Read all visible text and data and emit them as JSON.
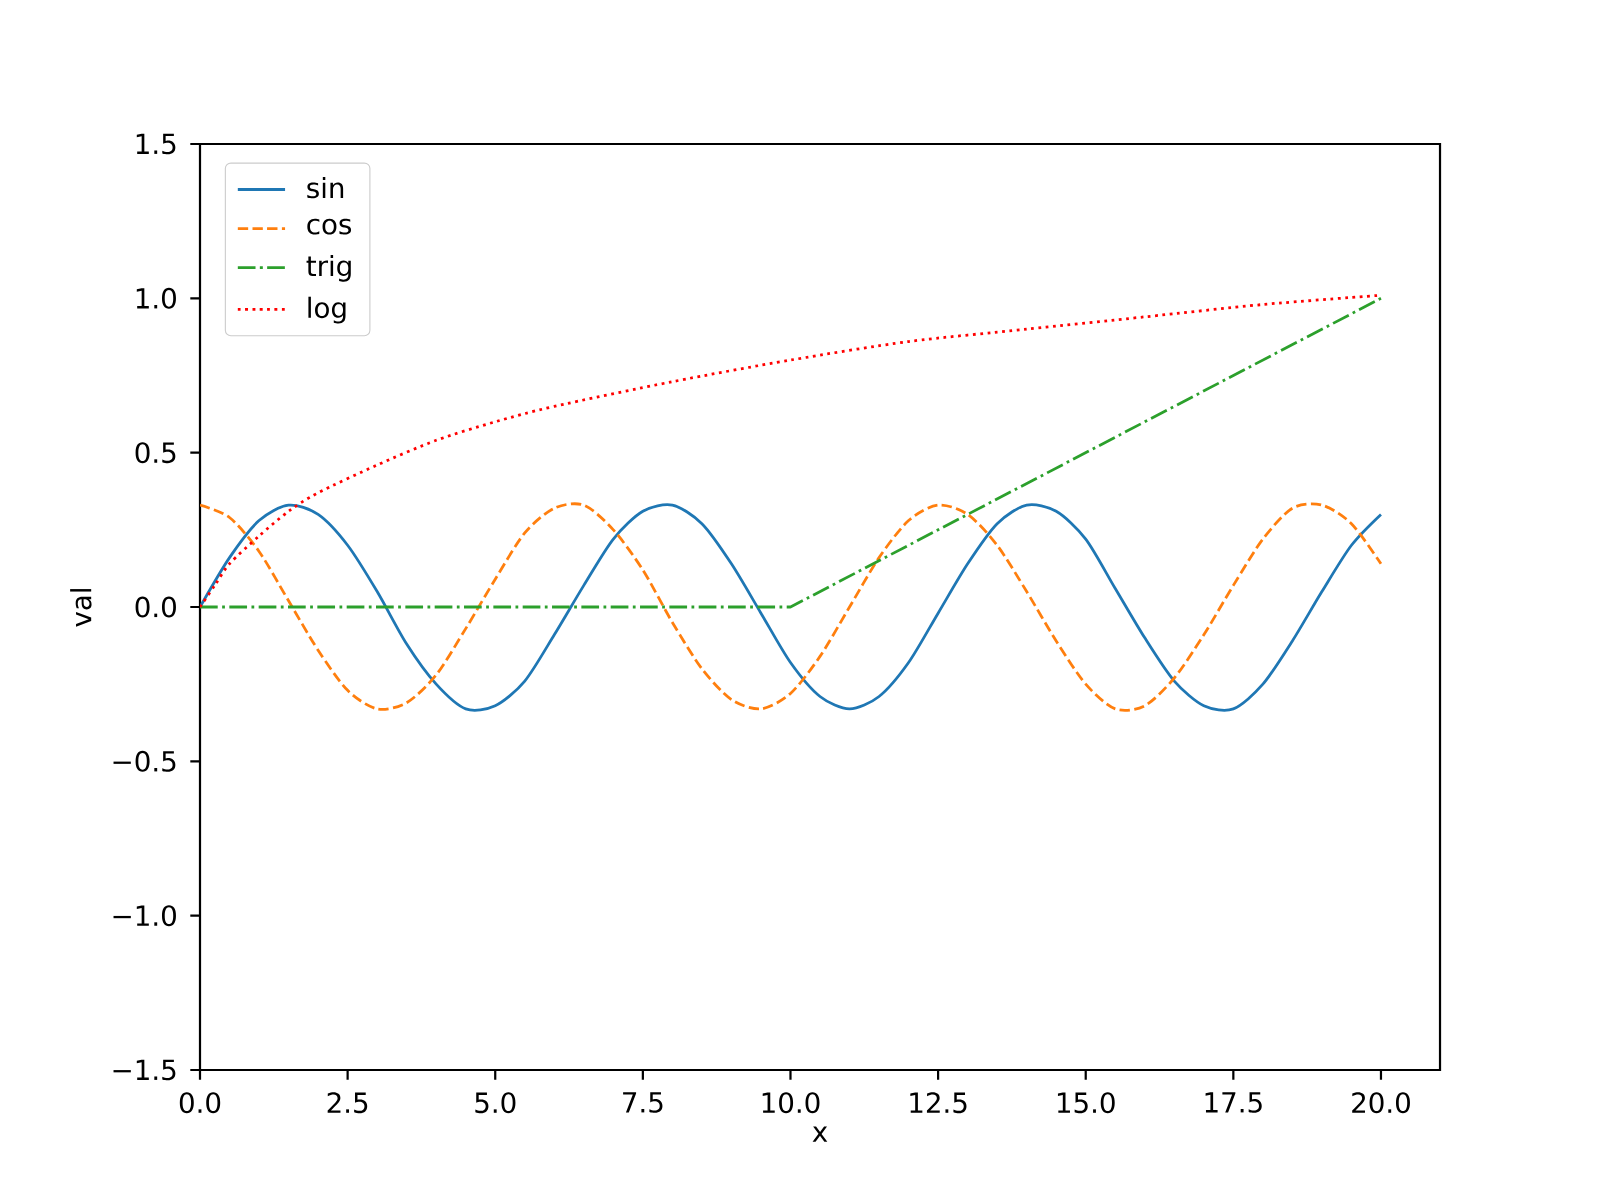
{
  "chart_data": {
    "type": "line",
    "xlabel": "x",
    "ylabel": "val",
    "xlim": [
      0,
      21
    ],
    "ylim": [
      -1.5,
      1.5
    ],
    "xticks": [
      {
        "value": 0,
        "label": "0.0"
      },
      2.5,
      {
        "value": 5,
        "label": "5.0"
      },
      7.5,
      {
        "value": 10,
        "label": "10.0"
      },
      12.5,
      {
        "value": 15,
        "label": "15.0"
      },
      17.5,
      {
        "value": 20,
        "label": "20.0"
      }
    ],
    "yticks": [
      {
        "value": -1.5,
        "label": "−1.5"
      },
      {
        "value": -1,
        "label": "−1.0"
      },
      {
        "value": -0.5,
        "label": "−0.5"
      },
      {
        "value": 0,
        "label": "0.0"
      },
      0.5,
      {
        "value": 1,
        "label": "1.0"
      },
      1.5
    ],
    "legend": "top left",
    "series": [
      {
        "name": "sin",
        "color": "#1f77b4",
        "line_style": "solid",
        "x": [
          0,
          0.5,
          1,
          1.5,
          2,
          2.5,
          3,
          3.5,
          4,
          4.5,
          5,
          5.5,
          6,
          6.5,
          7,
          7.5,
          8,
          8.5,
          9,
          9.5,
          10,
          10.5,
          11,
          11.5,
          12,
          12.5,
          13,
          13.5,
          14,
          14.5,
          15,
          15.5,
          16,
          16.5,
          17,
          17.5,
          18,
          18.5,
          19,
          19.5,
          20
        ],
        "values": [
          0,
          0.16,
          0.28,
          0.33,
          0.3,
          0.2,
          0.05,
          -0.12,
          -0.25,
          -0.33,
          -0.32,
          -0.24,
          -0.09,
          0.07,
          0.22,
          0.31,
          0.33,
          0.27,
          0.14,
          -0.02,
          -0.18,
          -0.29,
          -0.33,
          -0.29,
          -0.18,
          -0.02,
          0.14,
          0.27,
          0.33,
          0.31,
          0.22,
          0.06,
          -0.1,
          -0.24,
          -0.32,
          -0.33,
          -0.25,
          -0.11,
          0.05,
          0.2,
          0.3
        ]
      },
      {
        "name": "cos",
        "color": "#ff7f0e",
        "line_style": "dashed",
        "x": [
          0,
          0.5,
          1,
          1.5,
          2,
          2.5,
          3,
          3.5,
          4,
          4.5,
          5,
          5.5,
          6,
          6.5,
          7,
          7.5,
          8,
          8.5,
          9,
          9.5,
          10,
          10.5,
          11,
          11.5,
          12,
          12.5,
          13,
          13.5,
          14,
          14.5,
          15,
          15.5,
          16,
          16.5,
          17,
          17.5,
          18,
          18.5,
          19,
          19.5,
          20
        ],
        "values": [
          0.33,
          0.29,
          0.18,
          0.02,
          -0.14,
          -0.27,
          -0.33,
          -0.31,
          -0.22,
          -0.07,
          0.09,
          0.24,
          0.32,
          0.33,
          0.25,
          0.12,
          -0.05,
          -0.2,
          -0.3,
          -0.33,
          -0.28,
          -0.16,
          0.0,
          0.16,
          0.28,
          0.33,
          0.3,
          0.2,
          0.05,
          -0.11,
          -0.25,
          -0.33,
          -0.32,
          -0.23,
          -0.09,
          0.07,
          0.22,
          0.32,
          0.33,
          0.27,
          0.14
        ]
      },
      {
        "name": "trig",
        "color": "#2ca02c",
        "line_style": "dashdot",
        "x": [
          0,
          10,
          20
        ],
        "values": [
          0,
          0,
          1
        ]
      },
      {
        "name": "log",
        "color": "#ff0000",
        "line_style": "dotted",
        "x": [
          0,
          0.25,
          0.5,
          1,
          1.5,
          2,
          3,
          4,
          5,
          6,
          8,
          10,
          12,
          14,
          16,
          18,
          20
        ],
        "values": [
          0,
          0.07,
          0.14,
          0.23,
          0.31,
          0.37,
          0.46,
          0.54,
          0.6,
          0.65,
          0.73,
          0.8,
          0.86,
          0.9,
          0.94,
          0.98,
          1.01
        ]
      }
    ]
  }
}
